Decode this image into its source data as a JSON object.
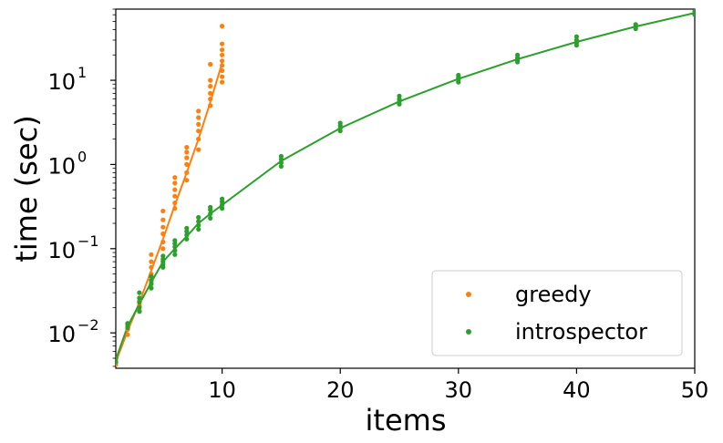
{
  "chart_data": {
    "type": "scatter",
    "xlabel": "items",
    "ylabel": "time (sec)",
    "xlim": [
      1,
      50
    ],
    "ylim": [
      0.0038,
      70
    ],
    "yscale": "log",
    "x_ticks": [
      10,
      20,
      30,
      40,
      50
    ],
    "y_ticks": [
      {
        "value": 0.01,
        "base": "10",
        "exp": "−2"
      },
      {
        "value": 0.1,
        "base": "10",
        "exp": "−1"
      },
      {
        "value": 1,
        "base": "10",
        "exp": "0"
      },
      {
        "value": 10,
        "base": "10",
        "exp": "1"
      }
    ],
    "grid": false,
    "legend_position": "lower-right",
    "series": [
      {
        "name": "greedy",
        "color": "#ff7f0e",
        "points": [
          [
            1,
            0.0042
          ],
          [
            1,
            0.0045
          ],
          [
            1,
            0.0048
          ],
          [
            2,
            0.0095
          ],
          [
            2,
            0.011
          ],
          [
            2,
            0.012
          ],
          [
            3,
            0.018
          ],
          [
            3,
            0.021
          ],
          [
            3,
            0.024
          ],
          [
            4,
            0.04
          ],
          [
            4,
            0.05
          ],
          [
            4,
            0.06
          ],
          [
            4,
            0.07
          ],
          [
            4,
            0.085
          ],
          [
            5,
            0.1
          ],
          [
            5,
            0.12
          ],
          [
            5,
            0.15
          ],
          [
            5,
            0.18
          ],
          [
            5,
            0.22
          ],
          [
            5,
            0.28
          ],
          [
            6,
            0.3
          ],
          [
            6,
            0.35
          ],
          [
            6,
            0.42
          ],
          [
            6,
            0.5
          ],
          [
            6,
            0.6
          ],
          [
            6,
            0.7
          ],
          [
            7,
            0.65
          ],
          [
            7,
            0.8
          ],
          [
            7,
            1.0
          ],
          [
            7,
            1.2
          ],
          [
            7,
            1.4
          ],
          [
            7,
            1.6
          ],
          [
            8,
            1.5
          ],
          [
            8,
            2.0
          ],
          [
            8,
            2.5
          ],
          [
            8,
            3.0
          ],
          [
            8,
            3.6
          ],
          [
            8,
            4.3
          ],
          [
            9,
            5.0
          ],
          [
            9,
            6.0
          ],
          [
            9,
            7.0
          ],
          [
            9,
            8.5
          ],
          [
            9,
            10.0
          ],
          [
            9,
            15.5
          ],
          [
            10,
            9.5
          ],
          [
            10,
            11.0
          ],
          [
            10,
            13.0
          ],
          [
            10,
            15.0
          ],
          [
            10,
            17.0
          ],
          [
            10,
            20.0
          ],
          [
            10,
            23.0
          ],
          [
            10,
            27.0
          ],
          [
            10,
            44.0
          ]
        ],
        "fit": [
          [
            1,
            0.0045
          ],
          [
            2,
            0.0105
          ],
          [
            3,
            0.023
          ],
          [
            4,
            0.055
          ],
          [
            5,
            0.13
          ],
          [
            6,
            0.33
          ],
          [
            7,
            0.8
          ],
          [
            8,
            2.0
          ],
          [
            9,
            5.5
          ],
          [
            10,
            16.0
          ]
        ]
      },
      {
        "name": "introspector",
        "color": "#2ca02c",
        "points": [
          [
            1,
            0.0045
          ],
          [
            1,
            0.005
          ],
          [
            2,
            0.0115
          ],
          [
            2,
            0.0125
          ],
          [
            2,
            0.013
          ],
          [
            3,
            0.018
          ],
          [
            3,
            0.02
          ],
          [
            3,
            0.023
          ],
          [
            3,
            0.026
          ],
          [
            3,
            0.03
          ],
          [
            4,
            0.034
          ],
          [
            4,
            0.038
          ],
          [
            4,
            0.042
          ],
          [
            4,
            0.047
          ],
          [
            5,
            0.06
          ],
          [
            5,
            0.065
          ],
          [
            5,
            0.07
          ],
          [
            5,
            0.075
          ],
          [
            5,
            0.082
          ],
          [
            6,
            0.085
          ],
          [
            6,
            0.095
          ],
          [
            6,
            0.105
          ],
          [
            6,
            0.115
          ],
          [
            6,
            0.125
          ],
          [
            7,
            0.13
          ],
          [
            7,
            0.145
          ],
          [
            7,
            0.16
          ],
          [
            7,
            0.175
          ],
          [
            8,
            0.17
          ],
          [
            8,
            0.19
          ],
          [
            8,
            0.21
          ],
          [
            8,
            0.235
          ],
          [
            9,
            0.23
          ],
          [
            9,
            0.26
          ],
          [
            9,
            0.29
          ],
          [
            9,
            0.31
          ],
          [
            10,
            0.3
          ],
          [
            10,
            0.33
          ],
          [
            10,
            0.36
          ],
          [
            10,
            0.39
          ],
          [
            15,
            0.95
          ],
          [
            15,
            1.05
          ],
          [
            15,
            1.15
          ],
          [
            15,
            1.25
          ],
          [
            20,
            2.5
          ],
          [
            20,
            2.7
          ],
          [
            20,
            2.9
          ],
          [
            20,
            3.1
          ],
          [
            25,
            5.2
          ],
          [
            25,
            5.6
          ],
          [
            25,
            6.0
          ],
          [
            25,
            6.5
          ],
          [
            30,
            9.5
          ],
          [
            30,
            10.2
          ],
          [
            30,
            10.8
          ],
          [
            30,
            11.5
          ],
          [
            35,
            16.5
          ],
          [
            35,
            17.5
          ],
          [
            35,
            18.5
          ],
          [
            35,
            20.0
          ],
          [
            40,
            26.0
          ],
          [
            40,
            28.0
          ],
          [
            40,
            30.0
          ],
          [
            40,
            33.0
          ],
          [
            45,
            41.0
          ],
          [
            45,
            43.0
          ],
          [
            45,
            46.0
          ],
          [
            50,
            60.0
          ],
          [
            50,
            63.0
          ],
          [
            50,
            66.0
          ]
        ],
        "fit": [
          [
            1,
            0.0048
          ],
          [
            2,
            0.012
          ],
          [
            3,
            0.022
          ],
          [
            4,
            0.04
          ],
          [
            5,
            0.07
          ],
          [
            6,
            0.1
          ],
          [
            7,
            0.14
          ],
          [
            8,
            0.2
          ],
          [
            9,
            0.26
          ],
          [
            10,
            0.33
          ],
          [
            15,
            1.1
          ],
          [
            20,
            2.7
          ],
          [
            25,
            5.6
          ],
          [
            30,
            10.4
          ],
          [
            35,
            17.8
          ],
          [
            40,
            28.5
          ],
          [
            45,
            43.5
          ],
          [
            50,
            63.0
          ]
        ]
      }
    ]
  }
}
